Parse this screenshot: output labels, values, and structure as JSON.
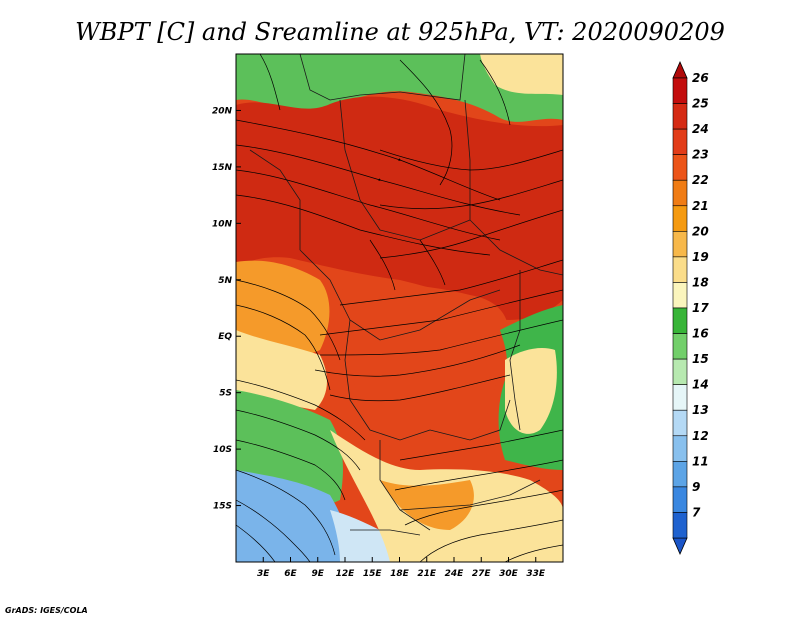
{
  "title": "WBPT [C] and Sreamline at 925hPa, VT: 2020090209",
  "credit": "GrADS: IGES/COLA",
  "map": {
    "lon_range": [
      0,
      36
    ],
    "lat_range": [
      -20,
      25
    ],
    "x_ticks": [
      {
        "lon": 3,
        "label": "3E"
      },
      {
        "lon": 6,
        "label": "6E"
      },
      {
        "lon": 9,
        "label": "9E"
      },
      {
        "lon": 12,
        "label": "12E"
      },
      {
        "lon": 15,
        "label": "15E"
      },
      {
        "lon": 18,
        "label": "18E"
      },
      {
        "lon": 21,
        "label": "21E"
      },
      {
        "lon": 24,
        "label": "24E"
      },
      {
        "lon": 27,
        "label": "27E"
      },
      {
        "lon": 30,
        "label": "30E"
      },
      {
        "lon": 33,
        "label": "33E"
      }
    ],
    "y_ticks": [
      {
        "lat": 20,
        "label": "20N"
      },
      {
        "lat": 15,
        "label": "15N"
      },
      {
        "lat": 10,
        "label": "10N"
      },
      {
        "lat": 5,
        "label": "5N"
      },
      {
        "lat": 0,
        "label": "EQ"
      },
      {
        "lat": -5,
        "label": "5S"
      },
      {
        "lat": -10,
        "label": "10S"
      },
      {
        "lat": -15,
        "label": "15S"
      }
    ]
  },
  "colorbar": {
    "levels": [
      {
        "label": "26",
        "color": "#c30d0d"
      },
      {
        "label": "25",
        "color": "#d52a13"
      },
      {
        "label": "24",
        "color": "#e23c18"
      },
      {
        "label": "23",
        "color": "#ec5418"
      },
      {
        "label": "22",
        "color": "#f07c14"
      },
      {
        "label": "21",
        "color": "#f59a10"
      },
      {
        "label": "20",
        "color": "#f7b84a"
      },
      {
        "label": "19",
        "color": "#fbdd8a"
      },
      {
        "label": "18",
        "color": "#fbf5bd"
      },
      {
        "label": "17",
        "color": "#38b538"
      },
      {
        "label": "16",
        "color": "#72cf6a"
      },
      {
        "label": "15",
        "color": "#b7e9b0"
      },
      {
        "label": "14",
        "color": "#e6f6f8"
      },
      {
        "label": "13",
        "color": "#b4d9f5"
      },
      {
        "label": "12",
        "color": "#88c0ee"
      },
      {
        "label": "11",
        "color": "#5ca4e6"
      },
      {
        "label": "9",
        "color": "#3a87e0"
      },
      {
        "label": "7",
        "color": "#1f62cf"
      }
    ],
    "top_cap_color": "#b00a0a",
    "bottom_cap_color": "#1a55c8"
  },
  "regions": {
    "sahel_green": "#5cc05a",
    "north_yellow": "#fbe39a",
    "orange": "#f59a2a",
    "red": "#e2461a",
    "deep_red": "#cf2a12",
    "south_blue": "#7ab4ea",
    "south_lightblue": "#cfe6f5",
    "east_green": "#3fb54a"
  }
}
